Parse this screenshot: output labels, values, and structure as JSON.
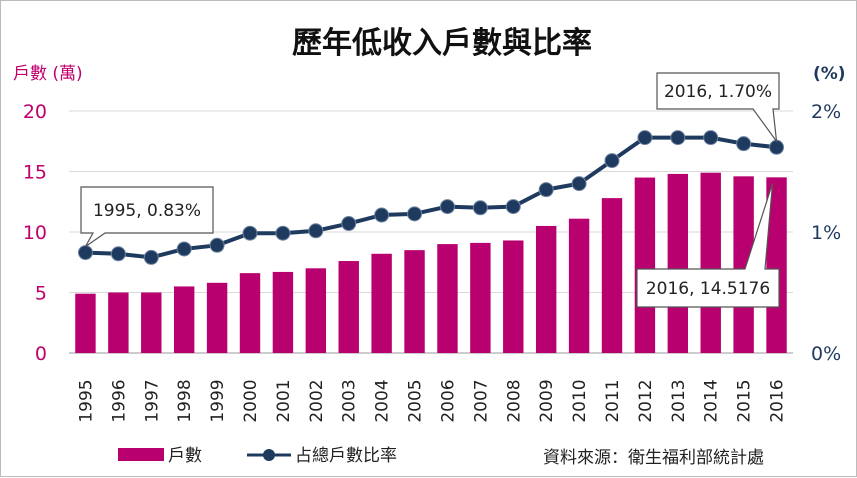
{
  "chart_data": {
    "type": "bar+line",
    "title": "歷年低收入戶數與比率",
    "categories": [
      "1995",
      "1996",
      "1997",
      "1998",
      "1999",
      "2000",
      "2001",
      "2002",
      "2003",
      "2004",
      "2005",
      "2006",
      "2007",
      "2008",
      "2009",
      "2010",
      "2011",
      "2012",
      "2013",
      "2014",
      "2015",
      "2016"
    ],
    "series": [
      {
        "name": "戶數",
        "axis": "left",
        "type": "bar",
        "color": "#b8006e",
        "values": [
          4.9,
          5.0,
          5.0,
          5.5,
          5.8,
          6.6,
          6.7,
          7.0,
          7.6,
          8.2,
          8.5,
          9.0,
          9.1,
          9.3,
          10.5,
          11.1,
          12.8,
          14.5,
          14.8,
          14.9,
          14.6,
          14.5176
        ]
      },
      {
        "name": "占總戶數比率",
        "axis": "right",
        "type": "line",
        "color": "#1f3a5f",
        "values": [
          0.83,
          0.82,
          0.79,
          0.86,
          0.89,
          0.99,
          0.99,
          1.01,
          1.07,
          1.14,
          1.15,
          1.21,
          1.2,
          1.21,
          1.35,
          1.4,
          1.59,
          1.78,
          1.78,
          1.78,
          1.73,
          1.7
        ]
      }
    ],
    "left_axis": {
      "label": "戶數 (萬)",
      "ylim": [
        0,
        20
      ],
      "ticks": [
        "0",
        "5",
        "10",
        "15",
        "20"
      ]
    },
    "right_axis": {
      "label": "(%)",
      "ylim": [
        0,
        2
      ],
      "ticks": [
        "0%",
        "1%",
        "2%"
      ]
    },
    "annotations": [
      {
        "text": "1995, 0.83%",
        "series": "占總戶數比率",
        "x": "1995"
      },
      {
        "text": "2016, 1.70%",
        "series": "占總戶數比率",
        "x": "2016"
      },
      {
        "text": "2016, 14.5176",
        "series": "戶數",
        "x": "2016"
      }
    ],
    "legend": [
      {
        "name": "戶數",
        "kind": "bar"
      },
      {
        "name": "占總戶數比率",
        "kind": "line"
      }
    ],
    "source": "資料來源：衛生福利部統計處"
  }
}
